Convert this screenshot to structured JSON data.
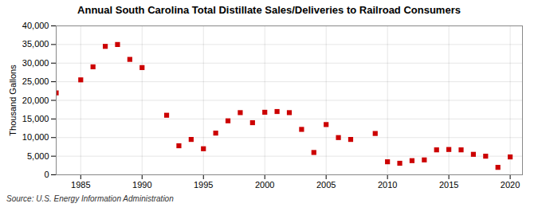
{
  "chart_data": {
    "type": "scatter",
    "title": "Annual South Carolina Total Distillate Sales/Deliveries to Railroad Consumers",
    "ylabel": "Thousand Gallons",
    "source": "Source: U.S. Energy Information Administration",
    "x": [
      1983,
      1985,
      1986,
      1987,
      1988,
      1989,
      1990,
      1992,
      1993,
      1994,
      1995,
      1996,
      1997,
      1998,
      1999,
      2000,
      2001,
      2002,
      2003,
      2004,
      2005,
      2006,
      2007,
      2009,
      2010,
      2011,
      2012,
      2013,
      2014,
      2015,
      2016,
      2017,
      2018,
      2019,
      2020
    ],
    "values": [
      22000,
      25500,
      29000,
      34500,
      35000,
      31000,
      28800,
      16000,
      7800,
      9500,
      7000,
      11200,
      14500,
      16700,
      14000,
      16800,
      17000,
      16700,
      12200,
      6000,
      13500,
      10000,
      9500,
      11100,
      3500,
      3100,
      3800,
      4000,
      6700,
      6800,
      6700,
      5500,
      5000,
      2000,
      4800
    ],
    "color": "#cc0000",
    "marker": "square",
    "xlim": [
      1983,
      2021
    ],
    "xticks": [
      1985,
      1990,
      1995,
      2000,
      2005,
      2010,
      2015,
      2020
    ],
    "ylim": [
      0,
      40000
    ],
    "yticks": [
      0,
      {
        "value": 5000,
        "label": "5,000"
      },
      {
        "value": 10000,
        "label": "10,000"
      },
      {
        "value": 15000,
        "label": "15,000"
      },
      {
        "value": 20000,
        "label": "20,000"
      },
      {
        "value": 25000,
        "label": "25,000"
      },
      {
        "value": 30000,
        "label": "30,000"
      },
      {
        "value": 35000,
        "label": "35,000"
      },
      {
        "value": 40000,
        "label": "40,000"
      }
    ],
    "grid": true
  }
}
